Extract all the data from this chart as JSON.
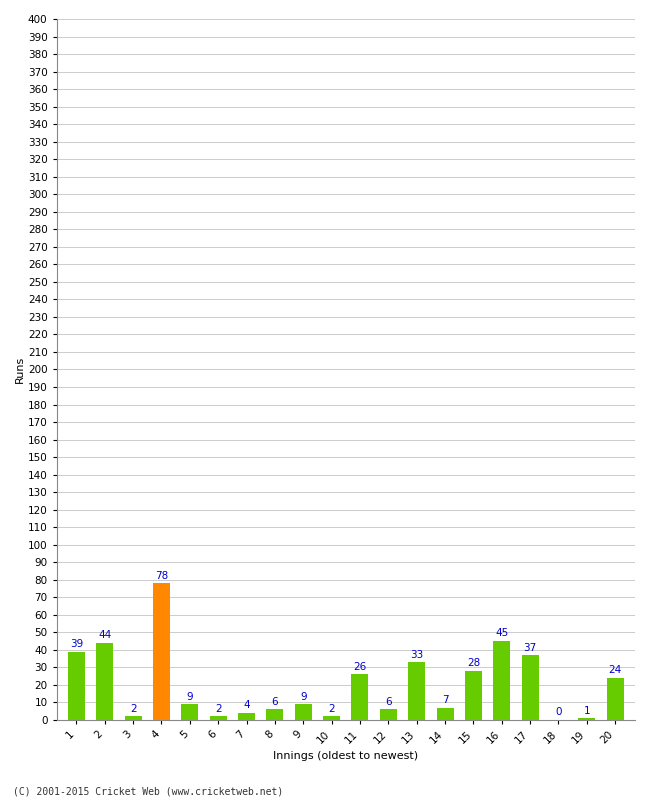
{
  "title": "",
  "xlabel": "Innings (oldest to newest)",
  "ylabel": "Runs",
  "values": [
    39,
    44,
    2,
    78,
    9,
    2,
    4,
    6,
    9,
    2,
    26,
    6,
    33,
    7,
    28,
    45,
    37,
    0,
    1,
    24
  ],
  "innings": [
    1,
    2,
    3,
    4,
    5,
    6,
    7,
    8,
    9,
    10,
    11,
    12,
    13,
    14,
    15,
    16,
    17,
    18,
    19,
    20
  ],
  "bar_colors": [
    "#66cc00",
    "#66cc00",
    "#66cc00",
    "#ff8800",
    "#66cc00",
    "#66cc00",
    "#66cc00",
    "#66cc00",
    "#66cc00",
    "#66cc00",
    "#66cc00",
    "#66cc00",
    "#66cc00",
    "#66cc00",
    "#66cc00",
    "#66cc00",
    "#66cc00",
    "#66cc00",
    "#66cc00",
    "#66cc00"
  ],
  "ylim": [
    0,
    400
  ],
  "ytick_step": 10,
  "label_color": "#0000cc",
  "grid_color": "#cccccc",
  "background_color": "#ffffff",
  "footer": "(C) 2001-2015 Cricket Web (www.cricketweb.net)",
  "label_fontsize": 7.5,
  "axis_tick_fontsize": 7.5,
  "axis_label_fontsize": 8,
  "bar_width": 0.6
}
